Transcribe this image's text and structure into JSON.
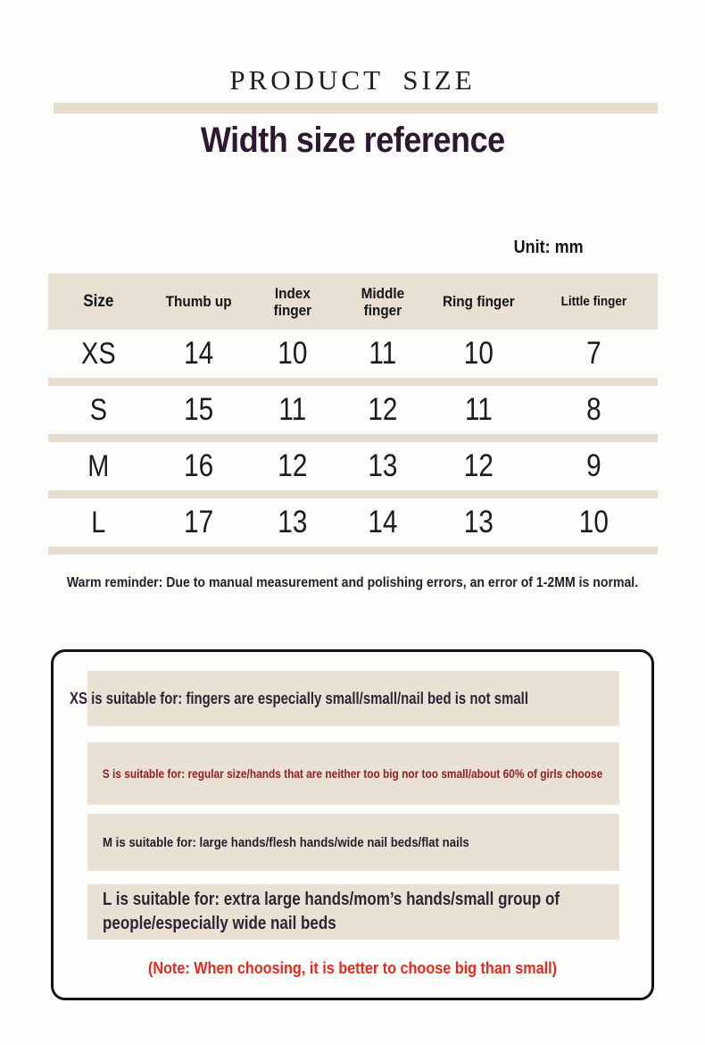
{
  "header": {
    "eyebrow": "PRODUCT SIZE",
    "title": "Width size reference"
  },
  "table": {
    "unit": "Unit: mm",
    "headers": [
      "Size",
      "Thumb up",
      "Index finger",
      "Middle finger",
      "Ring finger",
      "Little finger"
    ],
    "rows": [
      {
        "size": "XS",
        "values": [
          "14",
          "10",
          "11",
          "10",
          "7"
        ]
      },
      {
        "size": "S",
        "values": [
          "15",
          "11",
          "12",
          "11",
          "8"
        ]
      },
      {
        "size": "M",
        "values": [
          "16",
          "12",
          "13",
          "12",
          "9"
        ]
      },
      {
        "size": "L",
        "values": [
          "17",
          "13",
          "14",
          "13",
          "10"
        ]
      }
    ]
  },
  "reminder": "Warm reminder: Due to manual measurement and polishing errors, an error of 1-2MM is normal.",
  "suitability": {
    "xs": "XS is suitable for: fingers are especially small/small/nail bed is not small",
    "s": "S is suitable for: regular size/hands that are neither too big nor too small/about 60% of girls choose",
    "m": "M is suitable for: large hands/flesh hands/wide nail beds/flat nails",
    "l": "L is suitable for: extra large hands/mom’s hands/small group of people/especially wide nail beds",
    "note": "(Note: When choosing, it is better to choose big than small)"
  },
  "colors": {
    "beige_band": "#e6dccd",
    "table_header_bg": "#e9e0d3",
    "row_divider": "#e6ddd0",
    "block_bg": "#eae1d5",
    "title_purple": "#2e1831",
    "s_dark_red": "#8e2125",
    "note_red": "#e62a1f",
    "text_dark": "#1d1b1e"
  }
}
